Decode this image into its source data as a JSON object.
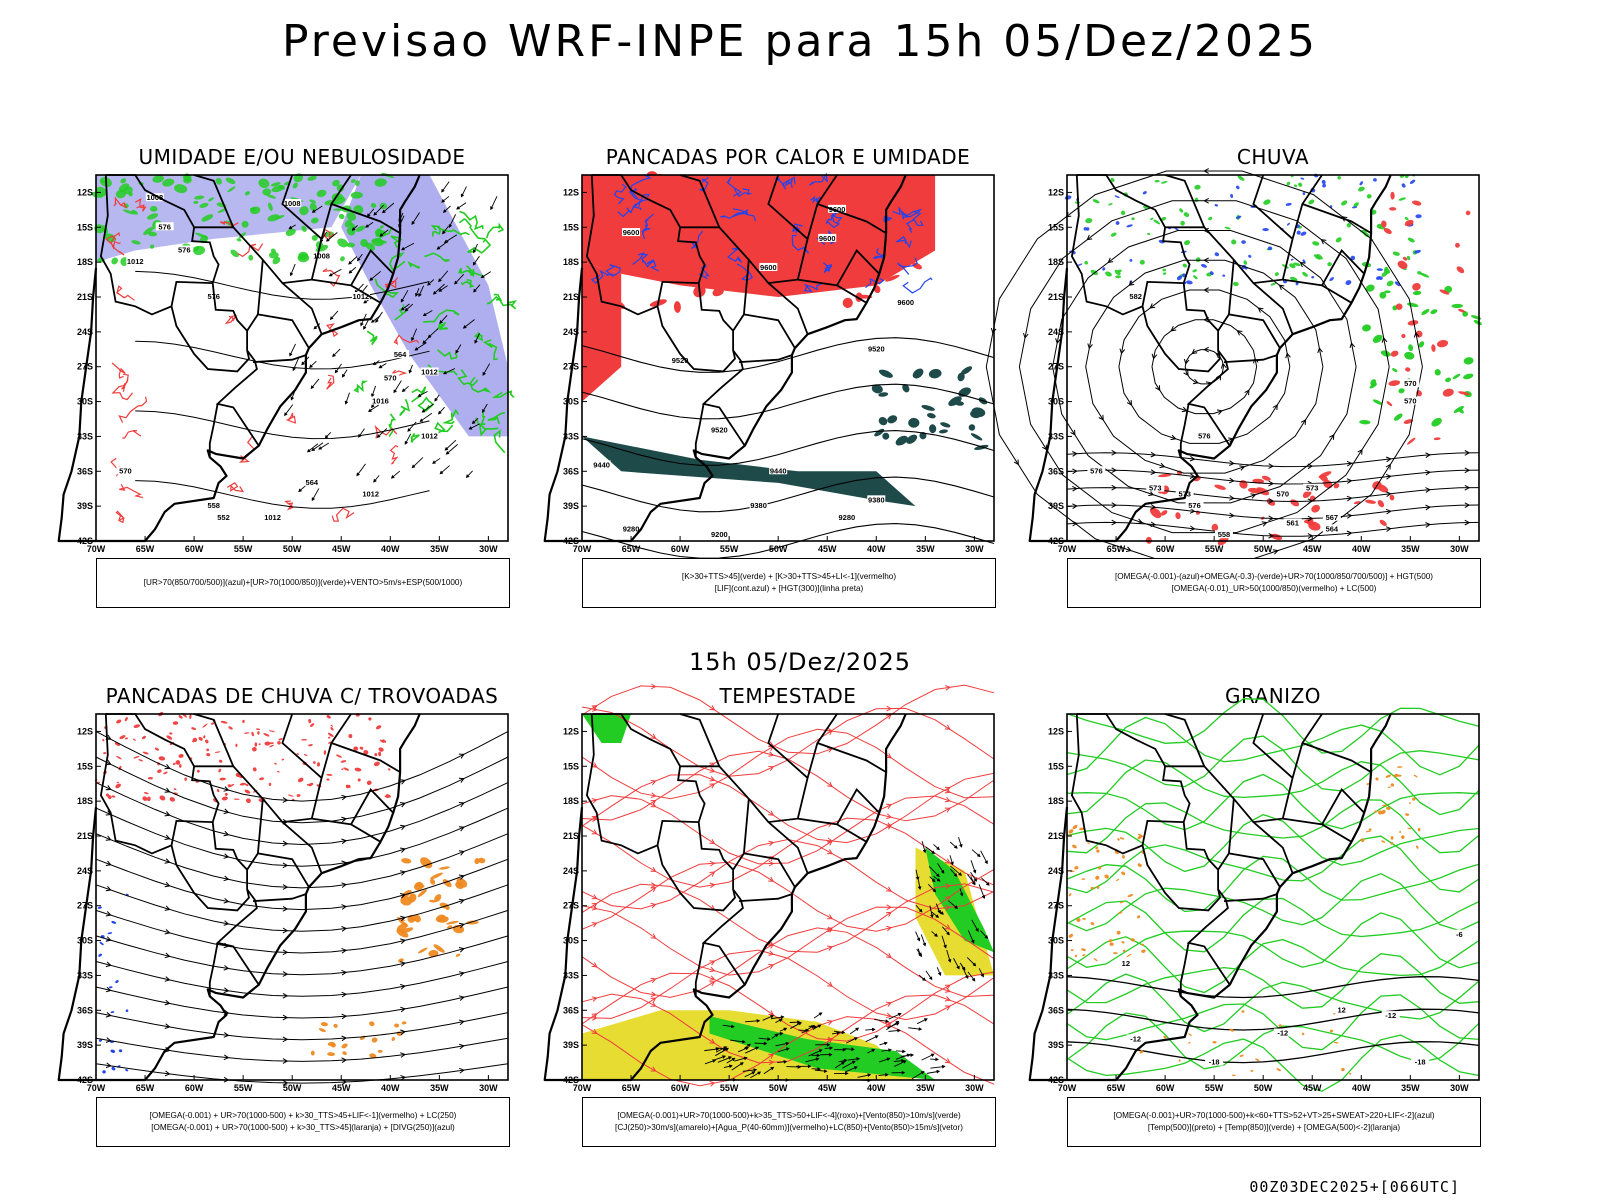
{
  "title": "Previsao WRF-INPE  para 15h 05/Dez/2025",
  "middle_title": "15h 05/Dez/2025",
  "footer": "00Z03DEC2025+[066UTC]",
  "colors": {
    "red": "#f03c3c",
    "green": "#22cc22",
    "blue": "#2244ee",
    "lavender": "#a6a6ee",
    "dark_teal": "#1f4a4a",
    "yellow": "#e6dc32",
    "orange": "#ee8a22"
  },
  "chart_data": [
    {
      "type": "map",
      "panel": "umidade",
      "title": "UMIDADE E/OU NEBULOSIDADE",
      "legend": [
        "[UR>70(850/700/500)](azul)+[UR>70(1000/850)](verde)+VENTO>5m/s+ESP(500/1000)"
      ],
      "xlim": [
        -70,
        -28
      ],
      "ylim": [
        -42,
        -10.5
      ],
      "xticks": [
        "70W",
        "65W",
        "60W",
        "55W",
        "50W",
        "45W",
        "40W",
        "35W",
        "30W"
      ],
      "yticks": [
        "12S",
        "15S",
        "18S",
        "21S",
        "24S",
        "27S",
        "30S",
        "33S",
        "36S",
        "39S",
        "42S"
      ],
      "contour_labels": [
        "1008",
        "1008",
        "1012",
        "1008",
        "1012",
        "1016",
        "1012",
        "1012",
        "1012",
        "576",
        "576",
        "576",
        "570",
        "564",
        "564",
        "558",
        "552",
        "570",
        "1012"
      ]
    },
    {
      "type": "map",
      "panel": "pancadas-calor",
      "title": "PANCADAS POR CALOR E UMIDADE",
      "legend": [
        "[K>30+TTS>45](verde) + [K>30+TTS>45+LI<-1](vermelho)",
        "[LIF](cont.azul) + [HGT(300)](linha preta)"
      ],
      "xlim": [
        -70,
        -28
      ],
      "ylim": [
        -42,
        -10.5
      ],
      "xticks": [
        "70W",
        "65W",
        "60W",
        "55W",
        "50W",
        "45W",
        "40W",
        "35W",
        "30W"
      ],
      "yticks": [
        "12S",
        "15S",
        "18S",
        "21S",
        "24S",
        "27S",
        "30S",
        "33S",
        "36S",
        "39S",
        "42S"
      ],
      "contour_labels": [
        "9600",
        "9600",
        "9600",
        "9600",
        "9600",
        "9520",
        "9520",
        "9520",
        "9440",
        "9440",
        "9380",
        "9380",
        "9280",
        "9280",
        "9200"
      ]
    },
    {
      "type": "map",
      "panel": "chuva",
      "title": "CHUVA",
      "legend": [
        "[OMEGA(-0.001)-(azul)+OMEGA(-0.3)-(verde)+UR>70(1000/850/700/500)] + HGT(500)",
        "[OMEGA(-0.01)_UR>50(1000/850)(vermelho) + LC(500)"
      ],
      "xlim": [
        -70,
        -28
      ],
      "ylim": [
        -42,
        -10.5
      ],
      "xticks": [
        "70W",
        "65W",
        "60W",
        "55W",
        "50W",
        "45W",
        "40W",
        "35W",
        "30W"
      ],
      "yticks": [
        "12S",
        "15S",
        "18S",
        "21S",
        "24S",
        "27S",
        "30S",
        "33S",
        "36S",
        "39S",
        "42S"
      ],
      "contour_labels": [
        "582",
        "576",
        "573",
        "570",
        "576",
        "576",
        "573",
        "573",
        "570",
        "567",
        "564",
        "561",
        "558",
        "570"
      ]
    },
    {
      "type": "map",
      "panel": "trovoadas",
      "title": "PANCADAS DE CHUVA C/ TROVOADAS",
      "legend": [
        "[OMEGA(-0.001) + UR>70(1000-500) + k>30_TTS>45+LIF<-1](vermelho) + LC(250)",
        "[OMEGA(-0.001) + UR>70(1000-500) + k>30_TTS>45](laranja) + [DIVG(250)](azul)"
      ],
      "xlim": [
        -70,
        -28
      ],
      "ylim": [
        -42,
        -10.5
      ],
      "xticks": [
        "70W",
        "65W",
        "60W",
        "55W",
        "50W",
        "45W",
        "40W",
        "35W",
        "30W"
      ],
      "yticks": [
        "12S",
        "15S",
        "18S",
        "21S",
        "24S",
        "27S",
        "30S",
        "33S",
        "36S",
        "39S",
        "42S"
      ],
      "contour_labels": []
    },
    {
      "type": "map",
      "panel": "tempestade",
      "title": "TEMPESTADE",
      "legend": [
        "[OMEGA(-0.001)+UR>70(1000-500)+k>35_TTS>50+LIF<-4](roxo)+[Vento(850)>10m/s](verde)",
        "[CJ(250)>30m/s](amarelo)+[Agua_P(40-60mm)](vermelho)+LC(850)+[Vento(850)>15m/s](vetor)"
      ],
      "xlim": [
        -70,
        -28
      ],
      "ylim": [
        -42,
        -10.5
      ],
      "xticks": [
        "70W",
        "65W",
        "60W",
        "55W",
        "50W",
        "45W",
        "40W",
        "35W",
        "30W"
      ],
      "yticks": [
        "12S",
        "15S",
        "18S",
        "21S",
        "24S",
        "27S",
        "30S",
        "33S",
        "36S",
        "39S",
        "42S"
      ],
      "contour_labels": []
    },
    {
      "type": "map",
      "panel": "granizo",
      "title": "GRANIZO",
      "legend": [
        "[OMEGA(-0.001)+UR>70(1000-500)+k<60+TTS>52+VT>25+SWEAT>220+LIF<-2](azul)",
        "[Temp(500)](preto) + [Temp(850)](verde) + [OMEGA(500)<-2](laranja)"
      ],
      "xlim": [
        -70,
        -28
      ],
      "ylim": [
        -42,
        -10.5
      ],
      "xticks": [
        "70W",
        "65W",
        "60W",
        "55W",
        "50W",
        "45W",
        "40W",
        "35W",
        "30W"
      ],
      "yticks": [
        "12S",
        "15S",
        "18S",
        "21S",
        "24S",
        "27S",
        "30S",
        "33S",
        "36S",
        "39S",
        "42S"
      ],
      "contour_labels": [
        "-6",
        "-12",
        "-12",
        "-12",
        "-18",
        "-18",
        "12",
        "12"
      ]
    }
  ]
}
